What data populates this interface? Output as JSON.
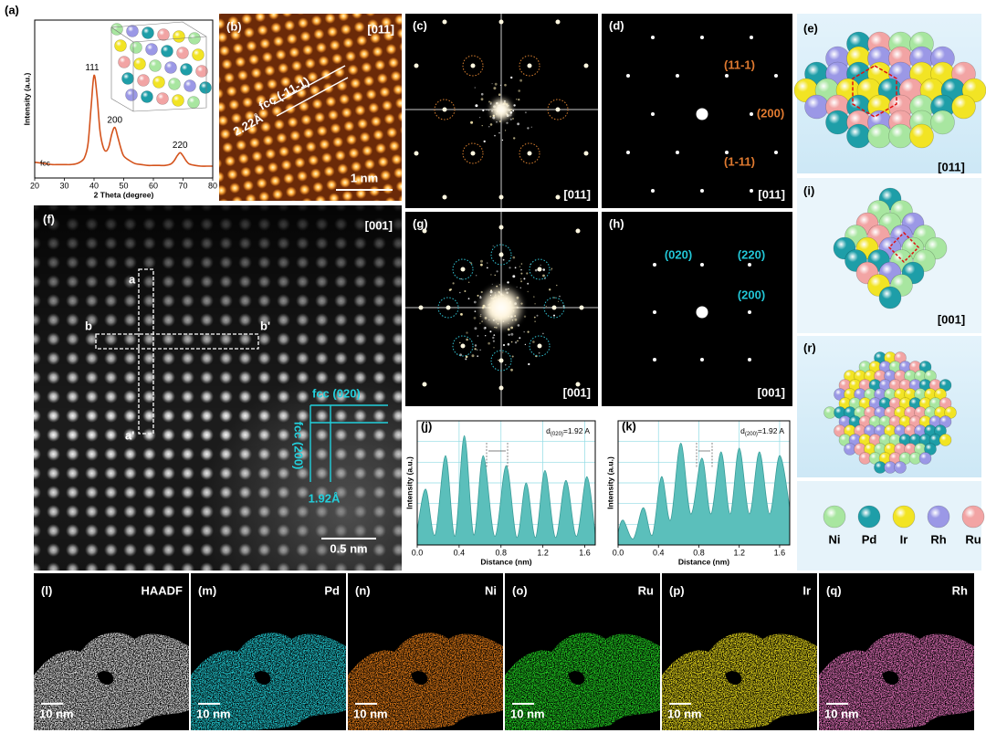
{
  "chart_data": [
    {
      "type": "line",
      "panel_label": "(a)",
      "xlabel": "2 Theta (degree)",
      "ylabel": "Intensity (a.u.)",
      "x": [
        20,
        22,
        24,
        26,
        28,
        30,
        32,
        34,
        36,
        37,
        38,
        39,
        40,
        41,
        42,
        43,
        44,
        45,
        46,
        47,
        48,
        49,
        50,
        52,
        54,
        56,
        58,
        60,
        62,
        64,
        66,
        67,
        68,
        69,
        70,
        71,
        72,
        74,
        76,
        78,
        80
      ],
      "values": [
        10,
        9.5,
        9,
        8.5,
        8.5,
        8.5,
        8.5,
        9,
        11,
        14,
        22,
        45,
        65,
        52,
        30,
        20,
        17,
        20,
        28,
        32,
        26,
        19,
        14,
        11,
        9,
        8.5,
        8,
        8,
        8,
        8,
        9,
        11,
        14,
        16,
        14,
        11,
        9,
        8,
        7.5,
        7.5,
        7.5
      ],
      "color": "#d4531c",
      "xlim": [
        20,
        80
      ],
      "xticks": [
        20,
        30,
        40,
        50,
        60,
        70,
        80
      ],
      "ylim": [
        0,
        100
      ],
      "peak_labels": [
        "111",
        "200",
        "220"
      ],
      "phase_label": "fcc"
    },
    {
      "type": "area",
      "panel_label": "(j)",
      "xlabel": "Distance (nm)",
      "ylabel": "Intensity (a.u.)",
      "x": [
        0,
        0.08,
        0.17,
        0.27,
        0.36,
        0.45,
        0.54,
        0.63,
        0.74,
        0.85,
        0.95,
        1.04,
        1.13,
        1.22,
        1.32,
        1.42,
        1.52,
        1.62,
        1.7
      ],
      "values": [
        12,
        45,
        8,
        72,
        7,
        88,
        8,
        72,
        7,
        64,
        6,
        50,
        6,
        60,
        6,
        52,
        7,
        55,
        8
      ],
      "color": "#5bbfbb",
      "xlim": [
        0,
        1.7
      ],
      "xticks": [
        {
          "value": 0,
          "label": "0.0"
        },
        0.4,
        0.8,
        1.2,
        1.6
      ],
      "ylim": [
        0,
        100
      ],
      "grid": true,
      "annotation": {
        "symbol": "d",
        "subscript": "(020)",
        "text": "=1.92 A"
      }
    },
    {
      "type": "area",
      "panel_label": "(k)",
      "xlabel": "Distance (nm)",
      "ylabel": "Intensity (a.u.)",
      "x": [
        0,
        0.05,
        0.15,
        0.25,
        0.34,
        0.43,
        0.52,
        0.62,
        0.72,
        0.83,
        0.92,
        1.02,
        1.11,
        1.2,
        1.3,
        1.4,
        1.5,
        1.6,
        1.7
      ],
      "values": [
        10,
        20,
        5,
        30,
        8,
        55,
        20,
        82,
        25,
        70,
        25,
        75,
        25,
        78,
        25,
        75,
        25,
        72,
        30
      ],
      "color": "#5bbfbb",
      "xlim": [
        0,
        1.7
      ],
      "xticks": [
        {
          "value": 0,
          "label": "0.0"
        },
        0.4,
        0.8,
        1.2,
        1.6
      ],
      "ylim": [
        0,
        100
      ],
      "grid": true,
      "annotation": {
        "symbol": "d",
        "subscript": "(200)",
        "text": "=1.92 A"
      }
    }
  ],
  "panels": {
    "b": {
      "label": "(b)",
      "zone": "[011]",
      "plane": "fcc (-11-1)",
      "spacing": "2.22Å",
      "scale_bar": "1 nm"
    },
    "c": {
      "label": "(c)",
      "zone": "[011]"
    },
    "d": {
      "label": "(d)",
      "zone": "[011]",
      "spots": [
        "(11-1)",
        "(200)",
        "(1-11)"
      ]
    },
    "e": {
      "label": "(e)",
      "zone": "[011]"
    },
    "f": {
      "label": "(f)",
      "zone": "[001]",
      "line_a": [
        "a",
        "a'"
      ],
      "line_b": [
        "b",
        "b'"
      ],
      "plane_1": "fcc (020)",
      "plane_2": "fcc (200)",
      "spacing": "1.92Å",
      "scale_bar": "0.5 nm"
    },
    "g": {
      "label": "(g)",
      "zone": "[001]"
    },
    "h": {
      "label": "(h)",
      "zone": "[001]",
      "spots": [
        "(020)",
        "(220)",
        "(200)"
      ]
    },
    "i": {
      "label": "(i)",
      "zone": "[001]"
    },
    "r": {
      "label": "(r)"
    }
  },
  "legend": [
    {
      "name": "Ni",
      "color": "#a8e6a0"
    },
    {
      "name": "Pd",
      "color": "#1e9ea8"
    },
    {
      "name": "Ir",
      "color": "#f2e424"
    },
    {
      "name": "Rh",
      "color": "#9b98e6"
    },
    {
      "name": "Ru",
      "color": "#f2a4a4"
    }
  ],
  "maps": [
    {
      "label": "(l)",
      "element": "HAADF",
      "color": "#dedede",
      "scale_bar": "10 nm"
    },
    {
      "label": "(m)",
      "element": "Pd",
      "color": "#22c8d0",
      "scale_bar": "10 nm"
    },
    {
      "label": "(n)",
      "element": "Ni",
      "color": "#e07a18",
      "scale_bar": "10 nm"
    },
    {
      "label": "(o)",
      "element": "Ru",
      "color": "#22d022",
      "scale_bar": "10 nm"
    },
    {
      "label": "(p)",
      "element": "Ir",
      "color": "#e6d81c",
      "scale_bar": "10 nm"
    },
    {
      "label": "(q)",
      "element": "Rh",
      "color": "#e070b8",
      "scale_bar": "10 nm"
    }
  ]
}
